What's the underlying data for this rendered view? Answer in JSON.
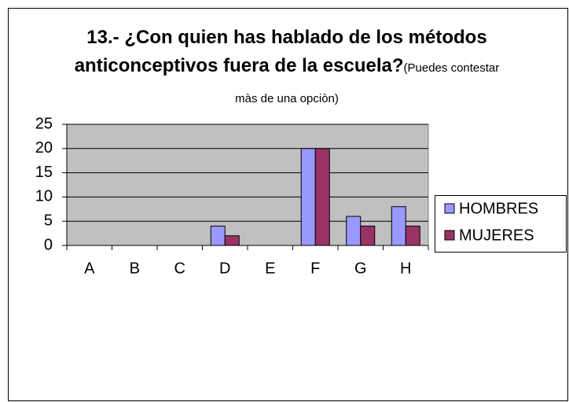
{
  "chart_data": {
    "type": "bar",
    "title": "13.- ¿Con quien has hablado de los métodos anticonceptivos fuera de la escuela?",
    "subtitle": "(Puedes contestar màs de una opciòn)",
    "categories": [
      "A",
      "B",
      "C",
      "D",
      "E",
      "F",
      "G",
      "H"
    ],
    "series": [
      {
        "name": "HOMBRES",
        "color": "#9999ff",
        "values": [
          0,
          0,
          0,
          4,
          0,
          20,
          6,
          8
        ]
      },
      {
        "name": "MUJERES",
        "color": "#993366",
        "values": [
          0,
          0,
          0,
          2,
          0,
          20,
          4,
          4
        ]
      }
    ],
    "ylim": [
      0,
      25
    ],
    "yticks": [
      0,
      5,
      10,
      15,
      20,
      25
    ],
    "grid": true,
    "legend": "right"
  }
}
